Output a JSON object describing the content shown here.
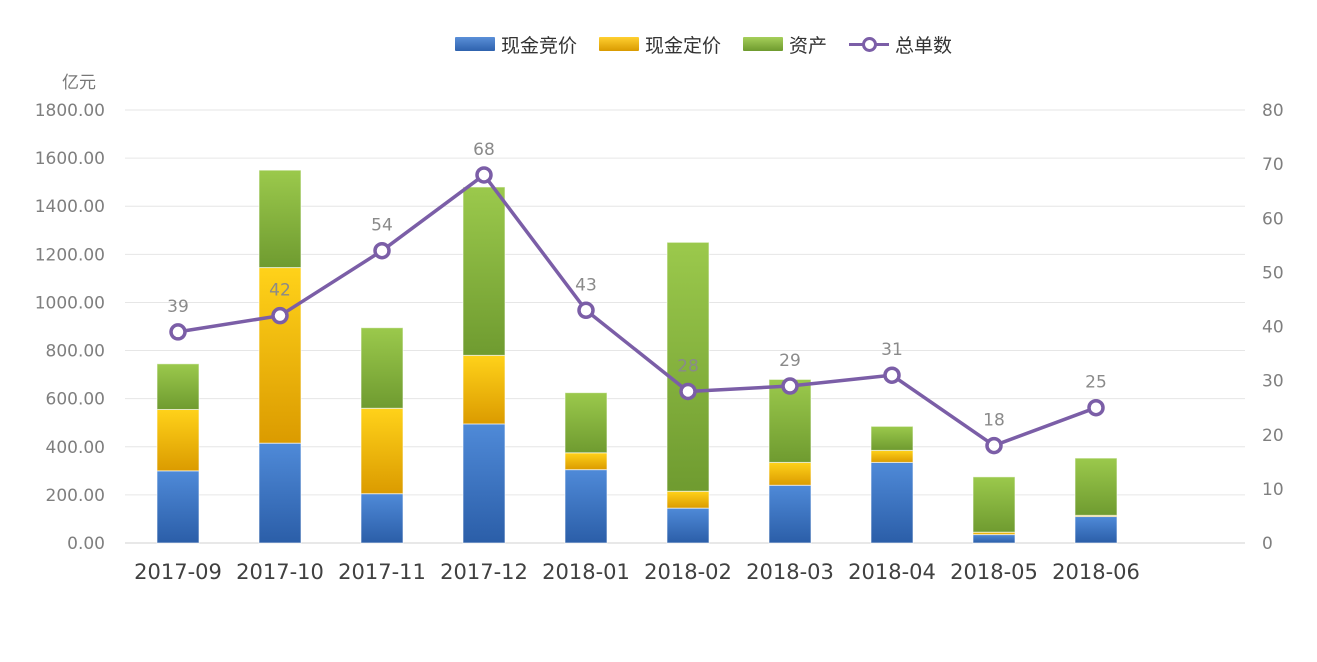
{
  "chart_data": {
    "type": "bar",
    "stacked": true,
    "unit_label": "亿元",
    "categories": [
      "2017-09",
      "2017-10",
      "2017-11",
      "2017-12",
      "2018-01",
      "2018-02",
      "2018-03",
      "2018-04",
      "2018-05",
      "2018-06"
    ],
    "series": [
      {
        "name": "现金竞价",
        "type": "bar",
        "axis": "left",
        "color": "#3a72c4",
        "values": [
          300,
          415,
          205,
          495,
          305,
          145,
          240,
          335,
          35,
          110
        ]
      },
      {
        "name": "现金定价",
        "type": "bar",
        "axis": "left",
        "color": "#f2b400",
        "values": [
          255,
          730,
          355,
          285,
          70,
          70,
          95,
          50,
          10,
          5
        ]
      },
      {
        "name": "资产",
        "type": "bar",
        "axis": "left",
        "color": "#8cbf3f",
        "values": [
          190,
          405,
          335,
          700,
          250,
          1035,
          345,
          100,
          230,
          238
        ]
      },
      {
        "name": "总单数",
        "type": "line",
        "axis": "right",
        "color": "#7b5ea7",
        "values": [
          39,
          42,
          54,
          68,
          43,
          28,
          29,
          31,
          18,
          25
        ]
      }
    ],
    "y_left": {
      "range": [
        0,
        1800
      ],
      "ticks": [
        "0.00",
        "200.00",
        "400.00",
        "600.00",
        "800.00",
        "1000.00",
        "1200.00",
        "1400.00",
        "1600.00",
        "1800.00"
      ]
    },
    "y_right": {
      "range": [
        0,
        80
      ],
      "ticks": [
        "0",
        "10",
        "20",
        "30",
        "40",
        "50",
        "60",
        "70",
        "80"
      ]
    },
    "line_labels": [
      "39",
      "42",
      "54",
      "68",
      "43",
      "28",
      "29",
      "31",
      "18",
      "25"
    ],
    "grid": true,
    "legend_position": "top-center"
  }
}
